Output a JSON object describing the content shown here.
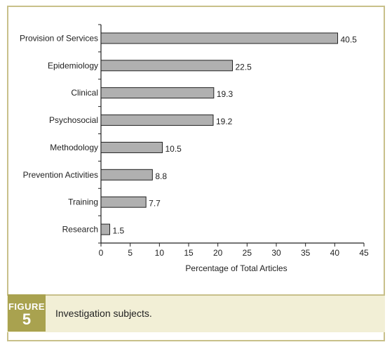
{
  "chart_data": {
    "type": "bar",
    "orientation": "horizontal",
    "categories": [
      "Provision of Services",
      "Epidemiology",
      "Clinical",
      "Psychosocial",
      "Methodology",
      "Prevention Activities",
      "Training",
      "Research"
    ],
    "values": [
      40.5,
      22.5,
      19.3,
      19.2,
      10.5,
      8.8,
      7.7,
      1.5
    ],
    "value_labels": [
      "40.5",
      "22.5",
      "19.3",
      "19.2",
      "10.5",
      "8.8",
      "7.7",
      "1.5"
    ],
    "xlabel": "Percentage of Total Articles",
    "xlim": [
      0,
      45
    ],
    "xticks": [
      "0",
      "5",
      "10",
      "15",
      "20",
      "25",
      "30",
      "35",
      "40",
      "45"
    ],
    "grid": false,
    "bar_color": "#b0b0b0",
    "bar_edge_color": "#222222"
  },
  "figure": {
    "label": "FIGURE",
    "number": "5",
    "caption": "Investigation subjects."
  },
  "colors": {
    "frame_border": "#c8c08a",
    "badge_bg": "#a9a24f",
    "caption_bg": "#f2efd6"
  }
}
